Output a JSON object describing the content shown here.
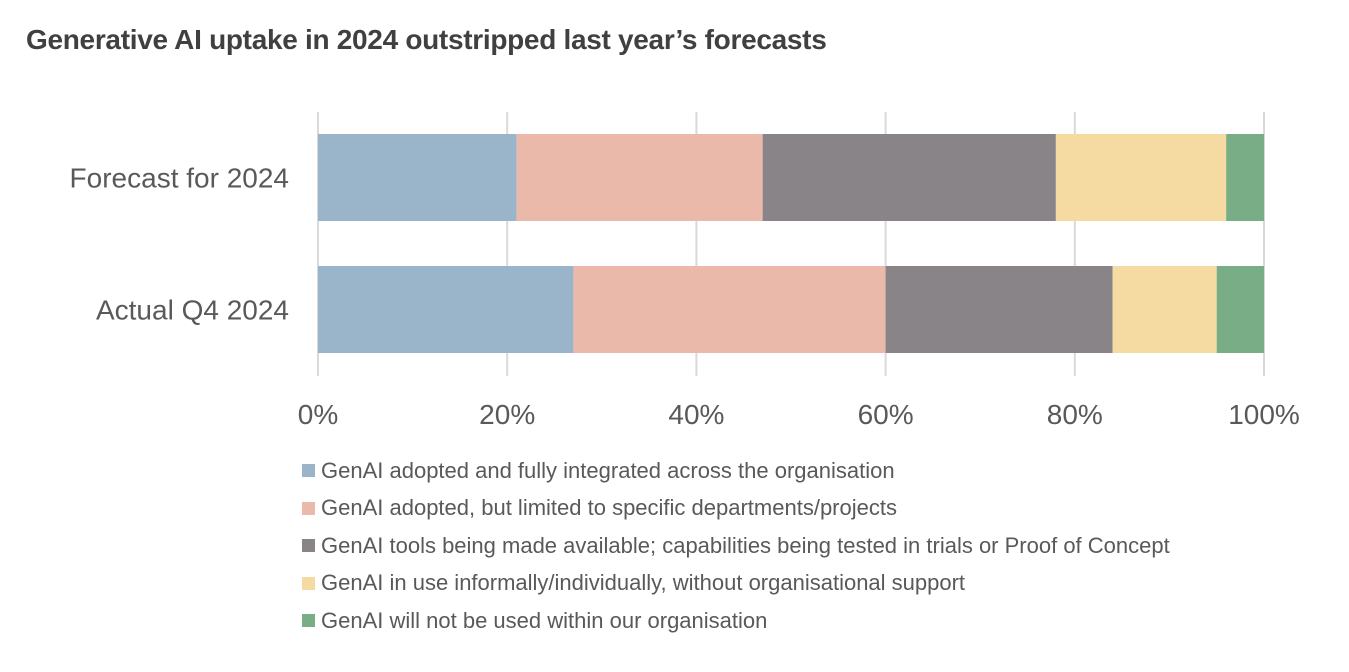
{
  "chart_data": {
    "type": "bar",
    "orientation": "horizontal",
    "stacked": true,
    "title": "Generative AI uptake in 2024 outstripped last year’s forecasts",
    "categories": [
      "Forecast for 2024",
      "Actual Q4 2024"
    ],
    "series": [
      {
        "name": "GenAI adopted and fully integrated across the organisation",
        "color": "#9ab5ca",
        "values": [
          21,
          27
        ]
      },
      {
        "name": "GenAI adopted, but limited to specific departments/projects",
        "color": "#ebb9a9",
        "values": [
          26,
          33
        ]
      },
      {
        "name": "GenAI tools being made available; capabilities being tested in trials or Proof of Concept",
        "color": "#888488",
        "values": [
          31,
          24
        ]
      },
      {
        "name": "GenAI in use informally/individually, without organisational support",
        "color": "#f5dba2",
        "values": [
          18,
          11
        ]
      },
      {
        "name": "GenAI will not be used within our organisation",
        "color": "#78ad85",
        "values": [
          4,
          5
        ]
      }
    ],
    "xlabel": "",
    "ylabel": "",
    "xlim": [
      0,
      100
    ],
    "x_ticks": [
      0,
      20,
      40,
      60,
      80,
      100
    ],
    "x_tick_labels": [
      "0%",
      "20%",
      "40%",
      "60%",
      "80%",
      "100%"
    ],
    "grid": true,
    "legend_position": "bottom"
  }
}
